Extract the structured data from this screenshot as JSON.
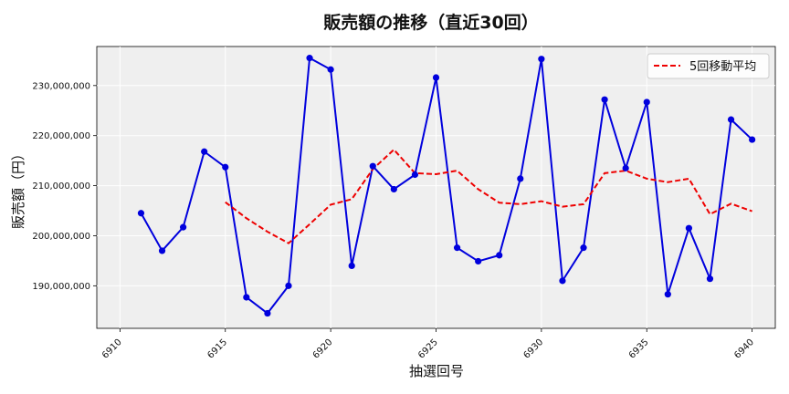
{
  "chart_data": {
    "type": "line",
    "title": "販売額の推移（直近30回）",
    "xlabel": "抽選回号",
    "ylabel": "販売額（円）",
    "xlim": [
      6908.9,
      6941.1
    ],
    "ylim": [
      181500000,
      237800000
    ],
    "xticks": [
      6910,
      6915,
      6920,
      6925,
      6930,
      6935,
      6940
    ],
    "yticks": [
      190000000,
      200000000,
      210000000,
      220000000,
      230000000
    ],
    "ytick_labels": [
      "190,000,000",
      "200,000,000",
      "210,000,000",
      "220,000,000",
      "230,000,000"
    ],
    "grid": true,
    "legend_position": "top-right",
    "x": [
      6911,
      6912,
      6913,
      6914,
      6915,
      6916,
      6917,
      6918,
      6919,
      6920,
      6921,
      6922,
      6923,
      6924,
      6925,
      6926,
      6927,
      6928,
      6929,
      6930,
      6931,
      6932,
      6933,
      6934,
      6935,
      6936,
      6937,
      6938,
      6939,
      6940
    ],
    "series": [
      {
        "name": "",
        "style": "solid-markers",
        "color": "#0000dd",
        "values": [
          204500000,
          197000000,
          201700000,
          216800000,
          213700000,
          187700000,
          184500000,
          190000000,
          235500000,
          233200000,
          194000000,
          213900000,
          209300000,
          212200000,
          231600000,
          197600000,
          194900000,
          196100000,
          211400000,
          235300000,
          191000000,
          197600000,
          227200000,
          213500000,
          226700000,
          188300000,
          201500000,
          191400000,
          223200000,
          219200000
        ]
      },
      {
        "name": "5回移動平均",
        "style": "dashed",
        "color": "#ee0000",
        "values": [
          null,
          null,
          null,
          null,
          206700000,
          203500000,
          200800000,
          198500000,
          202300000,
          206200000,
          207300000,
          213300000,
          217200000,
          212500000,
          212300000,
          213000000,
          209300000,
          206600000,
          206300000,
          206900000,
          205800000,
          206300000,
          212500000,
          213000000,
          211400000,
          210700000,
          211400000,
          204300000,
          206400000,
          204900000
        ]
      }
    ]
  }
}
